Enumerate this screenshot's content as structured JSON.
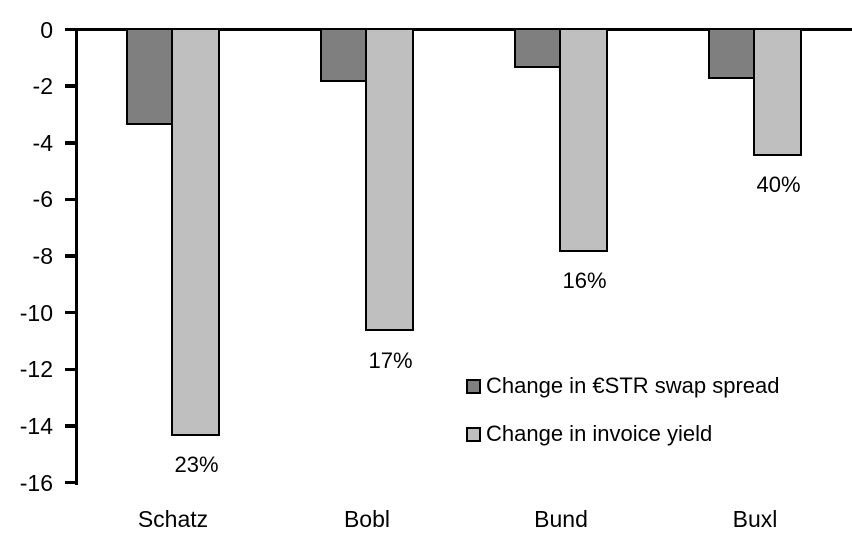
{
  "chart_data": {
    "type": "bar",
    "orientation": "vertical",
    "categories": [
      "Schatz",
      "Bobl",
      "Bund",
      "Buxl"
    ],
    "series": [
      {
        "name": "Change in €STR swap spread",
        "color": "#7f7f7f",
        "values": [
          -3.3,
          -1.8,
          -1.3,
          -1.7
        ]
      },
      {
        "name": "Change in invoice yield",
        "color": "#bfbfbf",
        "values": [
          -14.3,
          -10.6,
          -7.8,
          -4.4
        ]
      }
    ],
    "bar_labels": {
      "series_index": 1,
      "values": [
        "23%",
        "17%",
        "16%",
        "40%"
      ]
    },
    "title": "",
    "xlabel": "",
    "ylabel": "",
    "ylim": [
      -16,
      0
    ],
    "yticks": [
      0,
      -2,
      -4,
      -6,
      -8,
      -10,
      -12,
      -14,
      -16
    ],
    "grid": false,
    "legend_position": "inside-right",
    "axis_color": "#000000",
    "bar_border_color": "#000000",
    "background": "#ffffff"
  }
}
